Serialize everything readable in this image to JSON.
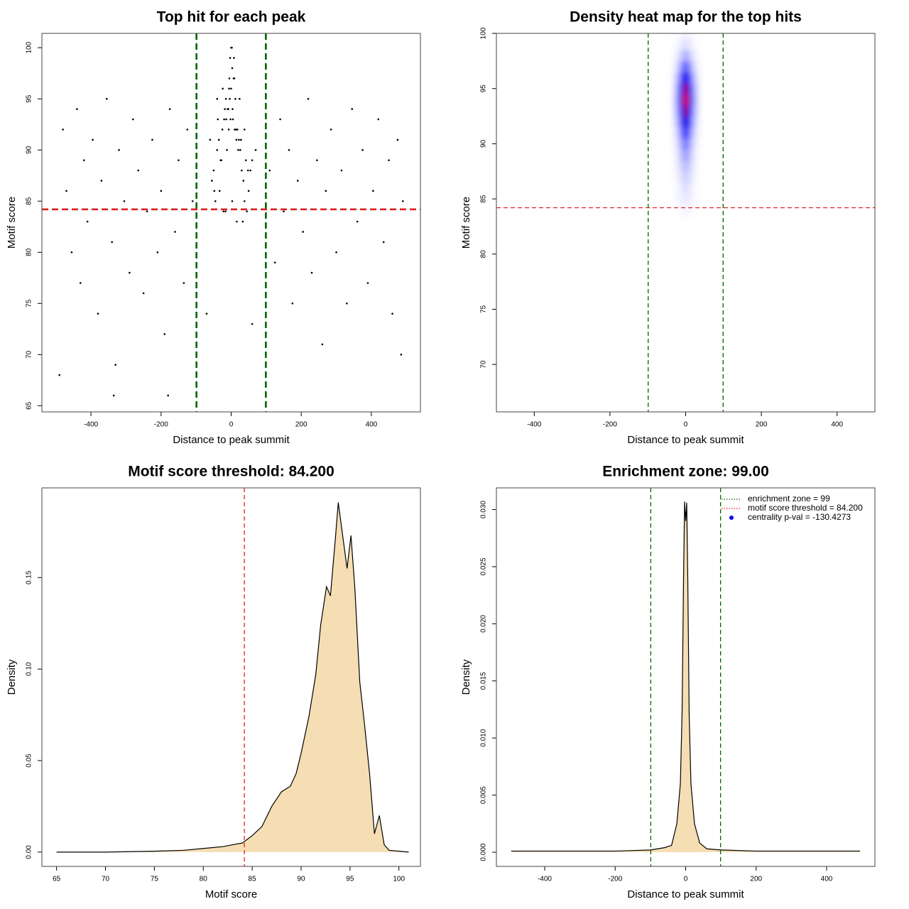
{
  "chart_data": [
    {
      "type": "scatter",
      "title": "Top hit for each peak",
      "xlabel": "Distance to peak summit",
      "ylabel": "Motif score",
      "xlim": [
        -540,
        540
      ],
      "ylim": [
        64.4,
        101.4
      ],
      "xticks": [
        -400,
        -200,
        0,
        200,
        400
      ],
      "yticks": [
        65,
        70,
        75,
        80,
        85,
        90,
        95,
        100
      ],
      "color": "#000000",
      "vlines": [
        -99,
        99
      ],
      "vline_color": "#006400",
      "hline": 84.2,
      "hline_color": "#dd2222",
      "x": [
        -480,
        -470,
        -455,
        -440,
        -430,
        -420,
        -410,
        -395,
        -380,
        -370,
        -355,
        -340,
        -330,
        -320,
        -305,
        -290,
        -280,
        -265,
        -250,
        -240,
        -225,
        -210,
        -200,
        -190,
        -175,
        -160,
        -150,
        -135,
        -125,
        -110,
        110,
        125,
        140,
        150,
        165,
        175,
        190,
        205,
        220,
        230,
        245,
        260,
        270,
        285,
        300,
        315,
        330,
        345,
        360,
        375,
        390,
        405,
        420,
        435,
        450,
        460,
        475,
        485,
        490,
        -490,
        -335,
        -180,
        -70,
        60,
        -40,
        70,
        -50,
        -35,
        -20,
        -10,
        0,
        10,
        20,
        35,
        50,
        -45,
        -30,
        -15,
        -5,
        5,
        15,
        30,
        45,
        -40,
        -25,
        -8,
        3,
        12,
        28,
        42,
        -55,
        -22,
        -12,
        -2,
        8,
        18,
        38,
        55,
        -33,
        -18,
        -6,
        2,
        9,
        22,
        33,
        -28,
        -14,
        -4,
        4,
        14,
        26,
        -60,
        60,
        -48,
        48,
        -38,
        38,
        -24,
        24,
        -16,
        16,
        -7,
        7,
        0,
        -3,
        3
      ],
      "values": [
        92,
        86,
        80,
        94,
        77,
        89,
        83,
        91,
        74,
        87,
        95,
        81,
        69,
        90,
        85,
        78,
        93,
        88,
        76,
        84,
        91,
        80,
        86,
        72,
        94,
        82,
        89,
        77,
        92,
        85,
        88,
        79,
        93,
        84,
        90,
        75,
        87,
        82,
        95,
        78,
        89,
        71,
        86,
        92,
        80,
        88,
        75,
        94,
        83,
        90,
        77,
        86,
        93,
        81,
        89,
        74,
        91,
        70,
        85,
        68,
        66,
        66,
        74,
        73,
        95,
        90,
        88,
        91,
        93,
        94,
        96,
        92,
        90,
        87,
        86,
        85,
        89,
        95,
        97,
        93,
        91,
        88,
        84,
        90,
        92,
        94,
        98,
        95,
        91,
        89,
        87,
        84,
        90,
        93,
        99,
        92,
        85,
        88,
        86,
        94,
        96,
        100,
        97,
        91,
        83,
        89,
        93,
        95,
        94,
        92,
        90,
        91,
        89,
        86,
        88,
        93,
        92,
        96,
        95,
        84,
        83,
        92,
        97,
        100,
        99,
        85
      ]
    },
    {
      "type": "heatmap",
      "title": "Density heat map for the top hits",
      "xlabel": "Distance to peak summit",
      "ylabel": "Motif score",
      "xlim": [
        -500,
        500
      ],
      "ylim": [
        65.7,
        100
      ],
      "xticks": [
        -400,
        -200,
        0,
        200,
        400
      ],
      "yticks": [
        70,
        75,
        80,
        85,
        90,
        95,
        100
      ],
      "colors": [
        "#ffffff",
        "#0000ff",
        "#ff0000"
      ],
      "vlines": [
        -99,
        99
      ],
      "vline_color": "#006400",
      "hline": 84.2,
      "hline_color": "#dd2222",
      "x": [
        -30,
        -20,
        -10,
        0,
        10,
        20,
        30
      ],
      "y": [
        84,
        85,
        86,
        87,
        88,
        89,
        90,
        91,
        92,
        93,
        94,
        95,
        96,
        97,
        98,
        99,
        100
      ],
      "values": [
        [
          0,
          0.01,
          0.02,
          0.03,
          0.02,
          0.01,
          0
        ],
        [
          0.01,
          0.02,
          0.04,
          0.05,
          0.04,
          0.02,
          0.01
        ],
        [
          0.01,
          0.02,
          0.06,
          0.08,
          0.06,
          0.02,
          0.01
        ],
        [
          0.01,
          0.04,
          0.08,
          0.12,
          0.08,
          0.04,
          0.01
        ],
        [
          0.02,
          0.05,
          0.12,
          0.17,
          0.12,
          0.05,
          0.02
        ],
        [
          0.02,
          0.07,
          0.17,
          0.24,
          0.17,
          0.07,
          0.02
        ],
        [
          0.03,
          0.1,
          0.23,
          0.33,
          0.23,
          0.1,
          0.03
        ],
        [
          0.05,
          0.14,
          0.34,
          0.48,
          0.34,
          0.14,
          0.05
        ],
        [
          0.07,
          0.2,
          0.48,
          0.68,
          0.48,
          0.2,
          0.07
        ],
        [
          0.09,
          0.26,
          0.62,
          0.88,
          0.62,
          0.26,
          0.09
        ],
        [
          0.1,
          0.3,
          0.7,
          1,
          0.7,
          0.3,
          0.1
        ],
        [
          0.09,
          0.27,
          0.63,
          0.9,
          0.63,
          0.27,
          0.09
        ],
        [
          0.07,
          0.2,
          0.46,
          0.65,
          0.46,
          0.2,
          0.07
        ],
        [
          0.04,
          0.12,
          0.28,
          0.4,
          0.28,
          0.12,
          0.04
        ],
        [
          0.02,
          0.06,
          0.14,
          0.2,
          0.14,
          0.06,
          0.02
        ],
        [
          0.01,
          0.02,
          0.06,
          0.08,
          0.06,
          0.02,
          0.01
        ],
        [
          0,
          0.01,
          0.02,
          0.03,
          0.02,
          0.01,
          0
        ]
      ]
    },
    {
      "type": "area",
      "title": "Motif score threshold: 84.200",
      "xlabel": "Motif score",
      "ylabel": "Density",
      "xlim": [
        63.5,
        102.2
      ],
      "ylim": [
        -0.0078,
        0.199
      ],
      "xticks": [
        65,
        70,
        75,
        80,
        85,
        90,
        95,
        100
      ],
      "yticks": [
        {
          "value": 0,
          "label": "0.00"
        },
        {
          "value": 0.05,
          "label": "0.05"
        },
        {
          "value": 0.1,
          "label": "0.10"
        },
        {
          "value": 0.15,
          "label": "0.15"
        }
      ],
      "color": "#f5deb3",
      "vlines": [
        84.2
      ],
      "vline_color": "#dd2222",
      "x": [
        65,
        70,
        75,
        78,
        80,
        82,
        83,
        84,
        85,
        86,
        87,
        88,
        88.9,
        89.5,
        90,
        90.8,
        91.5,
        92,
        92.6,
        93,
        93.5,
        93.8,
        94.3,
        94.7,
        95.1,
        95.5,
        96,
        96.5,
        97,
        97.5,
        98,
        98.5,
        99,
        100,
        101
      ],
      "values": [
        0,
        0,
        0.0005,
        0.001,
        0.002,
        0.003,
        0.004,
        0.005,
        0.009,
        0.014,
        0.025,
        0.033,
        0.036,
        0.043,
        0.054,
        0.074,
        0.097,
        0.124,
        0.145,
        0.14,
        0.171,
        0.191,
        0.171,
        0.155,
        0.173,
        0.144,
        0.093,
        0.069,
        0.043,
        0.01,
        0.02,
        0.004,
        0.001,
        0.0005,
        0
      ]
    },
    {
      "type": "area",
      "title": "Enrichment zone: 99.00",
      "xlabel": "Distance to peak summit",
      "ylabel": "Density",
      "xlim": [
        -537,
        537
      ],
      "ylim": [
        -0.00124,
        0.0319
      ],
      "xticks": [
        -400,
        -200,
        0,
        200,
        400
      ],
      "yticks": [
        {
          "value": 0,
          "label": "0.000"
        },
        {
          "value": 0.005,
          "label": "0.005"
        },
        {
          "value": 0.01,
          "label": "0.010"
        },
        {
          "value": 0.015,
          "label": "0.015"
        },
        {
          "value": 0.02,
          "label": "0.020"
        },
        {
          "value": 0.025,
          "label": "0.025"
        },
        {
          "value": 0.03,
          "label": "0.030"
        }
      ],
      "color": "#f5deb3",
      "vlines": [
        -99,
        99
      ],
      "vline_color": "#006400",
      "x": [
        -495,
        -300,
        -200,
        -100,
        -60,
        -40,
        -25,
        -15,
        -10,
        -6,
        -3,
        0,
        3,
        6,
        10,
        15,
        25,
        40,
        60,
        100,
        200,
        300,
        495
      ],
      "values": [
        0.0001,
        0.0001,
        0.0001,
        0.0002,
        0.0004,
        0.0006,
        0.0025,
        0.006,
        0.0124,
        0.024,
        0.0307,
        0.029,
        0.0306,
        0.024,
        0.012,
        0.006,
        0.0025,
        0.0008,
        0.0003,
        0.0002,
        0.0001,
        0.0001,
        0.0001
      ],
      "legend": {
        "position": "topright",
        "entries": [
          {
            "label": "enrichment zone = 99",
            "color": "#006400",
            "style": "dotted"
          },
          {
            "label": "motif score threshold = 84.200",
            "color": "#dd2222",
            "style": "dotted"
          },
          {
            "label": "centrality p-val = -130.4273",
            "color": "#0000ff",
            "style": "dot"
          }
        ]
      }
    }
  ]
}
